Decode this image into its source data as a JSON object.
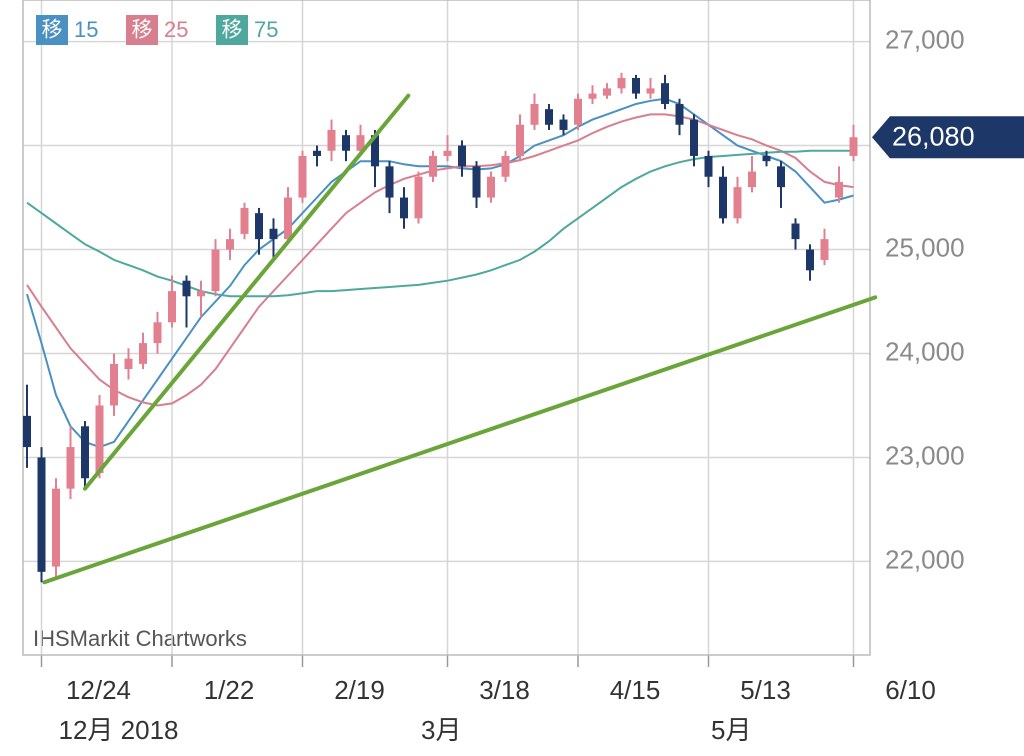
{
  "chart_data": {
    "type": "candlestick",
    "watermark": "IHSMarkit Chartworks",
    "ma_label": "移",
    "categories": [
      null,
      "12/24",
      null,
      null,
      null,
      null,
      null,
      null,
      null,
      null,
      "1/22",
      null,
      null,
      null,
      null,
      null,
      null,
      null,
      null,
      "2/19",
      null,
      null,
      null,
      null,
      null,
      null,
      null,
      null,
      null,
      "3/18",
      null,
      null,
      null,
      null,
      null,
      null,
      null,
      null,
      "4/15",
      null,
      null,
      null,
      null,
      null,
      null,
      null,
      null,
      "5/13",
      null,
      null,
      null,
      null,
      null,
      null,
      null,
      null,
      null,
      "6/10"
    ],
    "month_labels": [
      {
        "value": 1,
        "label": "12月 2018"
      },
      {
        "value": 26,
        "label": "3月"
      },
      {
        "value": 46,
        "label": "5月"
      }
    ],
    "open": [
      23400,
      23000,
      21950,
      22700,
      23300,
      22850,
      23500,
      23850,
      23900,
      24100,
      24300,
      24700,
      24550,
      24600,
      25000,
      25150,
      25350,
      25200,
      25100,
      25500,
      25950,
      25950,
      26100,
      25950,
      26100,
      25800,
      25500,
      25300,
      25700,
      25900,
      26000,
      25800,
      25500,
      25700,
      25900,
      26200,
      26350,
      26250,
      26200,
      26450,
      26480,
      26550,
      26650,
      26500,
      26600,
      26400,
      26250,
      25900,
      25700,
      25300,
      25600,
      25900,
      25800,
      25250,
      25000,
      24900,
      25500,
      25900
    ],
    "high": [
      23700,
      23100,
      22800,
      23300,
      23350,
      23600,
      24000,
      24050,
      24200,
      24400,
      24750,
      24750,
      24700,
      25100,
      25200,
      25450,
      25400,
      25300,
      25600,
      25950,
      26000,
      26250,
      26150,
      26200,
      26150,
      25850,
      25600,
      25750,
      25950,
      26100,
      26050,
      25850,
      25750,
      25950,
      26300,
      26500,
      26400,
      26300,
      26500,
      26580,
      26600,
      26700,
      26680,
      26650,
      26680,
      26450,
      26300,
      25950,
      25800,
      25700,
      25900,
      25950,
      25850,
      25300,
      25050,
      25200,
      25800,
      26200
    ],
    "low": [
      22900,
      21800,
      21850,
      22600,
      22700,
      22800,
      23400,
      23750,
      23850,
      24000,
      24250,
      24250,
      24350,
      24550,
      24900,
      25100,
      24950,
      24900,
      25050,
      25450,
      25800,
      25850,
      25850,
      25900,
      25600,
      25350,
      25200,
      25250,
      25650,
      25850,
      25700,
      25400,
      25450,
      25650,
      25850,
      26150,
      26150,
      26100,
      26150,
      26400,
      26450,
      26500,
      26450,
      26450,
      26350,
      26100,
      25800,
      25600,
      25250,
      25250,
      25550,
      25800,
      25400,
      25000,
      24700,
      24850,
      25450,
      25850
    ],
    "close": [
      23100,
      21900,
      22700,
      23100,
      22800,
      23500,
      23900,
      23950,
      24100,
      24300,
      24600,
      24550,
      24600,
      25000,
      25100,
      25400,
      25100,
      25100,
      25500,
      25900,
      25900,
      26150,
      25950,
      26100,
      25800,
      25500,
      25300,
      25700,
      25900,
      25950,
      25800,
      25500,
      25700,
      25900,
      26200,
      26400,
      26200,
      26150,
      26450,
      26500,
      26550,
      26650,
      26500,
      26550,
      26400,
      26200,
      25900,
      25700,
      25300,
      25600,
      25750,
      25850,
      25600,
      25100,
      24800,
      25100,
      25650,
      26080
    ],
    "up_color": "#e3808f",
    "down_color": "#1e3769",
    "series": [
      {
        "name": "15",
        "color": "#4a90c2",
        "values": [
          24570,
          24100,
          23600,
          23300,
          23150,
          23100,
          23150,
          23350,
          23550,
          23750,
          23950,
          24150,
          24350,
          24500,
          24650,
          24850,
          25000,
          25100,
          25200,
          25350,
          25500,
          25650,
          25750,
          25850,
          25850,
          25850,
          25820,
          25800,
          25800,
          25800,
          25780,
          25770,
          25780,
          25820,
          25900,
          26000,
          26050,
          26100,
          26180,
          26250,
          26300,
          26350,
          26400,
          26430,
          26450,
          26400,
          26300,
          26200,
          26100,
          26000,
          25950,
          25900,
          25850,
          25750,
          25600,
          25450,
          25480,
          25520
        ]
      },
      {
        "name": "25",
        "color": "#d77f8e",
        "values": [
          24660,
          24450,
          24250,
          24050,
          23900,
          23750,
          23650,
          23580,
          23530,
          23500,
          23520,
          23600,
          23700,
          23850,
          24050,
          24250,
          24450,
          24600,
          24750,
          24900,
          25050,
          25200,
          25350,
          25450,
          25550,
          25620,
          25680,
          25720,
          25760,
          25780,
          25800,
          25800,
          25810,
          25830,
          25860,
          25900,
          25950,
          26000,
          26050,
          26120,
          26180,
          26230,
          26270,
          26300,
          26300,
          26280,
          26250,
          26200,
          26150,
          26100,
          26060,
          26000,
          25950,
          25880,
          25750,
          25650,
          25620,
          25600
        ]
      },
      {
        "name": "75",
        "color": "#4ea89e",
        "values": [
          25450,
          25350,
          25250,
          25150,
          25050,
          24980,
          24900,
          24850,
          24800,
          24740,
          24700,
          24650,
          24600,
          24570,
          24550,
          24550,
          24550,
          24550,
          24560,
          24580,
          24600,
          24600,
          24610,
          24620,
          24630,
          24640,
          24650,
          24660,
          24680,
          24700,
          24730,
          24760,
          24800,
          24850,
          24900,
          24980,
          25080,
          25200,
          25300,
          25400,
          25500,
          25600,
          25680,
          25750,
          25800,
          25840,
          25870,
          25890,
          25900,
          25910,
          25920,
          25930,
          25940,
          25940,
          25950,
          25950,
          25950,
          25950
        ]
      }
    ],
    "trend_lines": [
      {
        "color": "#6aa53a",
        "x": [
          1.2,
          58.5
        ],
        "y": [
          21800,
          24540
        ]
      },
      {
        "color": "#6aa53a",
        "x": [
          4,
          26.3
        ],
        "y": [
          22700,
          26480
        ]
      }
    ],
    "last_price": {
      "value": 26080,
      "label": "26,080"
    },
    "ylim": [
      21100,
      27400
    ],
    "yticks": [
      {
        "value": 22000,
        "label": "22,000"
      },
      {
        "value": 23000,
        "label": "23,000"
      },
      {
        "value": 24000,
        "label": "24,000"
      },
      {
        "value": 25000,
        "label": "25,000"
      },
      {
        "value": 26000,
        "label": "26,000"
      },
      {
        "value": 27000,
        "label": "27,000"
      }
    ],
    "grid": true
  }
}
